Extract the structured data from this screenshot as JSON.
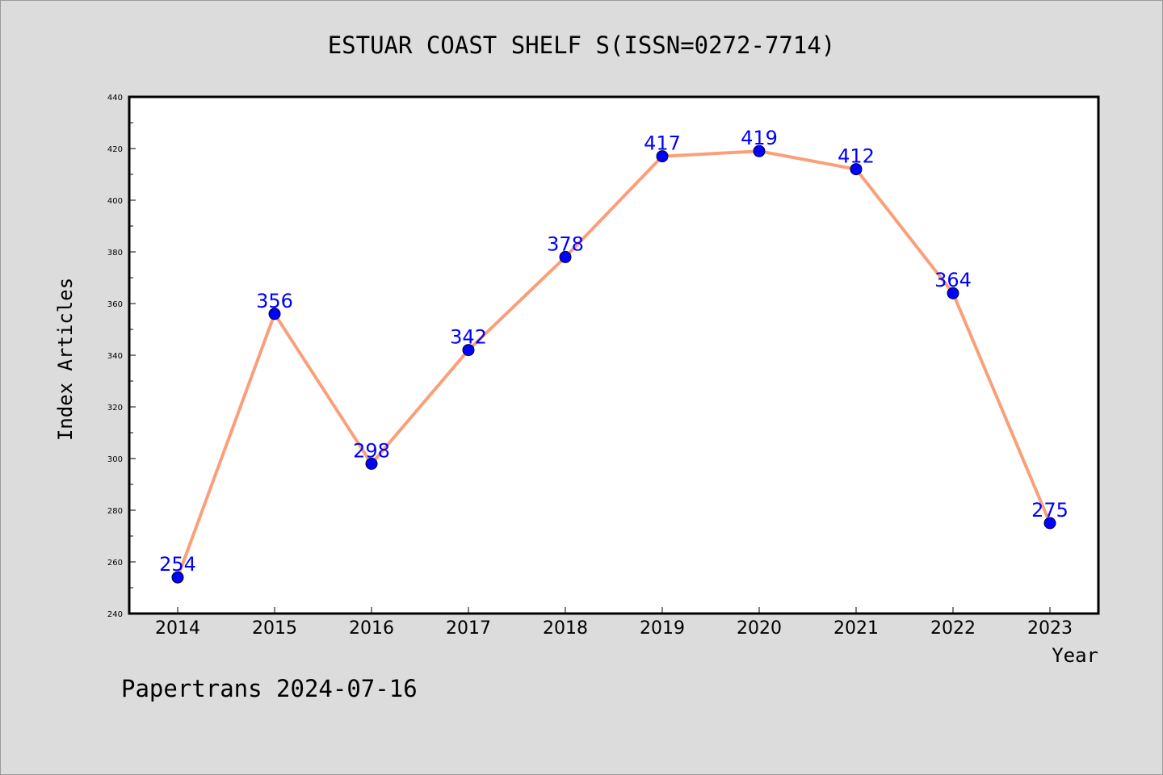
{
  "chart_data": {
    "type": "line",
    "title": "ESTUAR COAST SHELF S(ISSN=0272-7714)",
    "xlabel": "Year",
    "ylabel": "Index Articles",
    "categories": [
      "2014",
      "2015",
      "2016",
      "2017",
      "2018",
      "2019",
      "2020",
      "2021",
      "2022",
      "2023"
    ],
    "values": [
      254,
      356,
      298,
      342,
      378,
      417,
      419,
      412,
      364,
      275
    ],
    "ylim": [
      240,
      440
    ],
    "yticks": [
      "240",
      "260",
      "280",
      "300",
      "320",
      "340",
      "360",
      "380",
      "400",
      "420",
      "440"
    ],
    "grid": false,
    "line_color": "#f9a07a",
    "marker_color": "#0000ff",
    "label_color": "#0000ff"
  },
  "footer": {
    "text": "Papertrans 2024-07-16"
  }
}
